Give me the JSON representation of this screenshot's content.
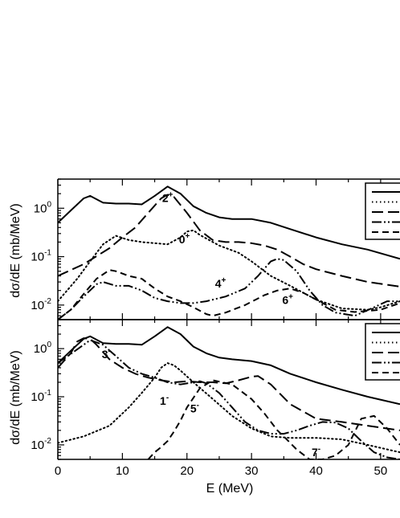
{
  "chart_data": [
    {
      "type": "line",
      "panel": "top",
      "xlabel": "",
      "ylabel": "dσ/dE  (mb/MeV)",
      "xlim": [
        0,
        53
      ],
      "ylim": [
        0.005,
        4
      ],
      "yscale": "log",
      "x_ticks": [
        0,
        10,
        20,
        30,
        40,
        50
      ],
      "y_ticks": [
        {
          "value": 1,
          "label": "10",
          "exp": "0"
        },
        {
          "value": 0.1,
          "label": "10",
          "exp": "-1"
        },
        {
          "value": 0.01,
          "label": "10",
          "exp": "-2"
        }
      ],
      "legend": "top-right (partially cropped, entries not visible)",
      "annotations": [
        {
          "text": "2",
          "sup": "+",
          "x": 17,
          "y": 1.35
        },
        {
          "text": "0",
          "sup": "+",
          "x": 19.6,
          "y": 0.19
        },
        {
          "text": "4",
          "sup": "+",
          "x": 25.2,
          "y": 0.023
        },
        {
          "text": "6",
          "sup": "+",
          "x": 35.6,
          "y": 0.0105
        }
      ],
      "series": [
        {
          "style": "solid",
          "x": [
            0,
            2,
            4,
            5,
            7,
            9,
            11,
            13,
            15,
            17,
            19,
            21,
            23,
            25,
            27,
            30,
            33,
            36,
            40,
            44,
            48,
            53
          ],
          "y": [
            0.5,
            0.9,
            1.6,
            1.8,
            1.3,
            1.25,
            1.25,
            1.2,
            1.8,
            2.8,
            2.0,
            1.1,
            0.8,
            0.65,
            0.6,
            0.6,
            0.5,
            0.37,
            0.25,
            0.18,
            0.14,
            0.09
          ]
        },
        {
          "style": "long-dash",
          "x": [
            0,
            4,
            8,
            10,
            12,
            14,
            16,
            17,
            18,
            20,
            22,
            24,
            26,
            28,
            30,
            32,
            34,
            36,
            38,
            40,
            44,
            48,
            53
          ],
          "y": [
            0.04,
            0.07,
            0.15,
            0.25,
            0.4,
            0.8,
            1.6,
            1.9,
            1.7,
            0.8,
            0.35,
            0.22,
            0.2,
            0.2,
            0.19,
            0.17,
            0.14,
            0.1,
            0.07,
            0.055,
            0.04,
            0.03,
            0.024
          ]
        },
        {
          "style": "dotted",
          "x": [
            0,
            3,
            5,
            7,
            9,
            11,
            13,
            15,
            17,
            19,
            20,
            21,
            22,
            25,
            28,
            30,
            33,
            36,
            40,
            44,
            48,
            50,
            53
          ],
          "y": [
            0.012,
            0.035,
            0.08,
            0.18,
            0.27,
            0.22,
            0.2,
            0.19,
            0.18,
            0.25,
            0.33,
            0.35,
            0.28,
            0.17,
            0.12,
            0.08,
            0.04,
            0.025,
            0.013,
            0.0085,
            0.008,
            0.009,
            0.012
          ]
        },
        {
          "style": "dash-dot-dot",
          "x": [
            0,
            2,
            4,
            6,
            7,
            9,
            11,
            13,
            15,
            17,
            19,
            21,
            23,
            26,
            29,
            31,
            33,
            34,
            35,
            37,
            39,
            41,
            43,
            46,
            49,
            51,
            53
          ],
          "y": [
            0.005,
            0.008,
            0.015,
            0.027,
            0.03,
            0.025,
            0.025,
            0.02,
            0.014,
            0.012,
            0.011,
            0.011,
            0.012,
            0.015,
            0.022,
            0.04,
            0.08,
            0.09,
            0.085,
            0.05,
            0.02,
            0.01,
            0.007,
            0.006,
            0.009,
            0.012,
            0.012
          ]
        },
        {
          "style": "dash",
          "x": [
            0,
            2,
            4,
            6,
            8,
            9,
            11,
            13,
            15,
            17,
            19,
            21,
            23,
            24,
            26,
            29,
            32,
            34,
            36,
            38,
            40,
            43,
            46,
            50,
            53
          ],
          "y": [
            0.005,
            0.008,
            0.017,
            0.035,
            0.053,
            0.05,
            0.04,
            0.035,
            0.022,
            0.015,
            0.012,
            0.009,
            0.0065,
            0.006,
            0.007,
            0.01,
            0.016,
            0.02,
            0.022,
            0.018,
            0.013,
            0.008,
            0.0072,
            0.008,
            0.011
          ]
        }
      ]
    },
    {
      "type": "line",
      "panel": "bottom",
      "xlabel": "E (MeV)",
      "ylabel": "dσ/dE  (mb/MeV)",
      "xlim": [
        0,
        53
      ],
      "ylim": [
        0.005,
        4
      ],
      "yscale": "log",
      "x_ticks": [
        0,
        10,
        20,
        30,
        40,
        50
      ],
      "y_ticks": [
        {
          "value": 1,
          "label": "10",
          "exp": "0"
        },
        {
          "value": 0.1,
          "label": "10",
          "exp": "-1"
        },
        {
          "value": 0.01,
          "label": "10",
          "exp": "-2"
        }
      ],
      "legend": "top-right (partially cropped, entries not visible)",
      "annotations": [
        {
          "text": "3",
          "sup": "-",
          "x": 7.5,
          "y": 0.63
        },
        {
          "text": "1",
          "sup": "-",
          "x": 16.5,
          "y": 0.068
        },
        {
          "text": "5",
          "sup": "-",
          "x": 21.2,
          "y": 0.047
        },
        {
          "text": "7",
          "sup": "-",
          "x": 40,
          "y": 0.0058
        }
      ],
      "series": [
        {
          "style": "solid",
          "x": [
            0,
            2,
            4,
            5,
            7,
            9,
            11,
            13,
            15,
            17,
            19,
            21,
            23,
            25,
            27,
            30,
            33,
            36,
            40,
            44,
            48,
            53
          ],
          "y": [
            0.5,
            0.9,
            1.6,
            1.8,
            1.3,
            1.25,
            1.25,
            1.2,
            1.8,
            2.8,
            2.0,
            1.1,
            0.8,
            0.65,
            0.6,
            0.55,
            0.45,
            0.3,
            0.2,
            0.14,
            0.1,
            0.07
          ]
        },
        {
          "style": "long-dash",
          "x": [
            0,
            2,
            3,
            4,
            5,
            6,
            8,
            10,
            12,
            14,
            16,
            18,
            20,
            22,
            24,
            26,
            28,
            30,
            31,
            33,
            36,
            40,
            44,
            48,
            53
          ],
          "y": [
            0.4,
            0.8,
            1.4,
            1.65,
            1.6,
            1.2,
            0.6,
            0.4,
            0.3,
            0.25,
            0.22,
            0.2,
            0.21,
            0.2,
            0.2,
            0.19,
            0.22,
            0.26,
            0.27,
            0.18,
            0.07,
            0.035,
            0.03,
            0.025,
            0.02
          ]
        },
        {
          "style": "dotted",
          "x": [
            0,
            4,
            8,
            11,
            13,
            15,
            16,
            17,
            18,
            19,
            21,
            24,
            27,
            30,
            33,
            36,
            40,
            44,
            48,
            52,
            53
          ],
          "y": [
            0.011,
            0.015,
            0.025,
            0.06,
            0.12,
            0.25,
            0.4,
            0.5,
            0.45,
            0.35,
            0.2,
            0.09,
            0.04,
            0.022,
            0.015,
            0.014,
            0.014,
            0.013,
            0.01,
            0.0075,
            0.007
          ]
        },
        {
          "style": "dash-dot-dot",
          "x": [
            0,
            4,
            5,
            7,
            9,
            11,
            13,
            15,
            17,
            19,
            21,
            22,
            23,
            25,
            27,
            29,
            31,
            33,
            35,
            37,
            39,
            41,
            43,
            45,
            47,
            49,
            51,
            53
          ],
          "y": [
            0.5,
            1.2,
            1.5,
            1.2,
            0.7,
            0.4,
            0.3,
            0.25,
            0.2,
            0.18,
            0.2,
            0.21,
            0.19,
            0.12,
            0.06,
            0.03,
            0.02,
            0.017,
            0.017,
            0.02,
            0.025,
            0.03,
            0.029,
            0.022,
            0.012,
            0.007,
            0.0055,
            0.005
          ]
        },
        {
          "style": "dash",
          "x": [
            14,
            15,
            16,
            17,
            18,
            19,
            20,
            22,
            24,
            27,
            30,
            32,
            34,
            35,
            37,
            39,
            41,
            43,
            45,
            47,
            49,
            51,
            53
          ],
          "y": [
            0.005,
            0.007,
            0.009,
            0.012,
            0.019,
            0.032,
            0.06,
            0.15,
            0.22,
            0.18,
            0.09,
            0.045,
            0.02,
            0.015,
            0.008,
            0.005,
            0.005,
            0.006,
            0.01,
            0.035,
            0.04,
            0.022,
            0.01
          ]
        }
      ]
    }
  ]
}
